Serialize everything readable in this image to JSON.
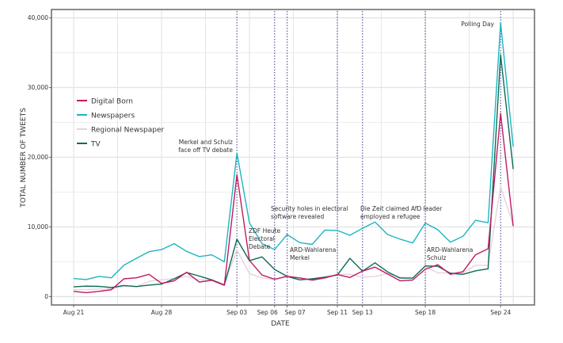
{
  "chart_data": {
    "type": "line",
    "xlabel": "DATE",
    "ylabel": "TOTAL NUMBER OF TWEETS",
    "ylim": [
      -1200,
      41200
    ],
    "yticks": [
      0,
      10000,
      20000,
      30000,
      40000
    ],
    "ytick_labels": [
      "0",
      "10,000",
      "20,000",
      "30,000",
      "40,000"
    ],
    "x_start": "Aug 21",
    "x_days": 36,
    "xticks": [
      {
        "day": 0,
        "label": "Aug 21"
      },
      {
        "day": 7,
        "label": "Aug 28"
      },
      {
        "day": 13,
        "label": "Sep 03"
      },
      {
        "day": 16,
        "label": "Sep 06"
      },
      {
        "day": 17,
        "label": "Sep 07"
      },
      {
        "day": 21,
        "label": "Sep 11"
      },
      {
        "day": 23,
        "label": "Sep 13"
      },
      {
        "day": 28,
        "label": "Sep 18"
      },
      {
        "day": 34,
        "label": "Sep 24"
      }
    ],
    "grid": true,
    "legend_placement": "left",
    "series": [
      {
        "name": "Regional Newspaper",
        "color": "#e6d3e0",
        "values": [
          1000,
          1000,
          1100,
          1100,
          1500,
          1400,
          2200,
          2400,
          2600,
          2900,
          2400,
          2400,
          1800,
          6700,
          3300,
          2700,
          2400,
          3000,
          2700,
          2300,
          2600,
          3200,
          3200,
          2800,
          2900,
          3300,
          2800,
          2700,
          4300,
          3400,
          3400,
          3400,
          4500,
          4500,
          15800,
          10300
        ]
      },
      {
        "name": "Newspapers",
        "color": "#1db5c2",
        "values": [
          2600,
          2450,
          2900,
          2700,
          4500,
          5500,
          6450,
          6750,
          7600,
          6500,
          5750,
          6000,
          5000,
          20600,
          10600,
          7600,
          6750,
          8900,
          7750,
          7500,
          9550,
          9500,
          8800,
          9800,
          10700,
          8900,
          8250,
          7700,
          10550,
          9600,
          7800,
          8650,
          10950,
          10600,
          39300,
          21500
        ]
      },
      {
        "name": "TV",
        "color": "#0d6b56",
        "values": [
          1400,
          1500,
          1470,
          1300,
          1600,
          1450,
          1650,
          1800,
          2550,
          3450,
          2950,
          2400,
          1650,
          8250,
          5150,
          5700,
          3900,
          2900,
          2400,
          2550,
          2800,
          3100,
          5500,
          3650,
          4850,
          3550,
          2650,
          2650,
          4400,
          4350,
          3350,
          3200,
          3700,
          4000,
          34700,
          18300
        ]
      },
      {
        "name": "Digital Born",
        "color": "#c01a62",
        "values": [
          750,
          570,
          750,
          980,
          2550,
          2700,
          3200,
          1900,
          2250,
          3500,
          2080,
          2350,
          1620,
          17500,
          5200,
          3100,
          2500,
          2900,
          2680,
          2380,
          2700,
          3170,
          2750,
          3650,
          4230,
          3250,
          2270,
          2380,
          3930,
          4570,
          3200,
          3580,
          6000,
          6870,
          26300,
          10100
        ]
      }
    ],
    "legend": [
      "Digital Born",
      "Newspapers",
      "Regional Newspaper",
      "TV"
    ],
    "event_line_color": "#5b5b9e",
    "annotations": [
      {
        "day": 13,
        "lines": [
          "Merkel and Schulz",
          "face off TV debate"
        ]
      },
      {
        "day": 16,
        "lines": [
          "ZDF Heute",
          "Electoral",
          "Debate"
        ]
      },
      {
        "day": 21,
        "lines": [
          "Security holes in electoral",
          "software revealed"
        ]
      },
      {
        "day": 17,
        "lines": [
          "ARD-Wahlarena",
          "Merkel"
        ]
      },
      {
        "day": 23,
        "lines": [
          "Die Zeit claimed AfD leader",
          "employed a refugee"
        ]
      },
      {
        "day": 28,
        "lines": [
          "ARD-Wahlarena",
          "Schulz"
        ]
      },
      {
        "day": 34,
        "lines": [
          "Polling Day"
        ]
      }
    ]
  }
}
